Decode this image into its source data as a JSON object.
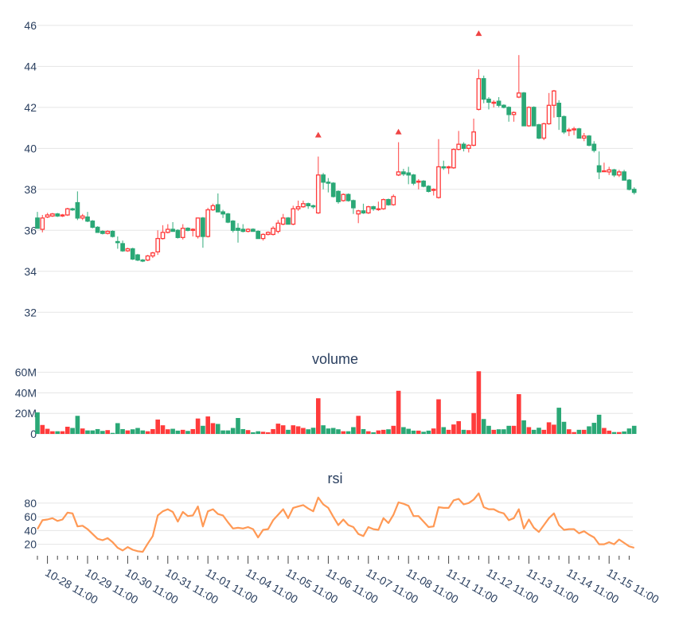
{
  "chart_data": [
    {
      "type": "candlestick",
      "title": "",
      "ylim": [
        31.0,
        46.5
      ],
      "yticks": [
        32,
        34,
        36,
        38,
        40,
        42,
        44,
        46
      ],
      "grid": true,
      "colors": {
        "increasing": "#ff3b3b",
        "decreasing": "#2aa876",
        "marker": "#ef4444"
      },
      "ohlc": [
        [
          36.6,
          36.9,
          36.1,
          36.1
        ],
        [
          36.05,
          36.75,
          35.9,
          36.6
        ],
        [
          36.65,
          36.85,
          36.6,
          36.75
        ],
        [
          36.7,
          36.85,
          36.65,
          36.8
        ],
        [
          36.8,
          36.85,
          36.65,
          36.7
        ],
        [
          36.7,
          36.8,
          36.65,
          36.75
        ],
        [
          36.75,
          37.1,
          36.7,
          37.05
        ],
        [
          37.05,
          37.1,
          36.95,
          37.0
        ],
        [
          37.35,
          37.9,
          36.5,
          36.6
        ],
        [
          36.6,
          36.8,
          36.5,
          36.7
        ],
        [
          36.65,
          36.9,
          36.4,
          36.45
        ],
        [
          36.45,
          36.5,
          36.1,
          36.15
        ],
        [
          36.15,
          36.2,
          35.9,
          35.9
        ],
        [
          35.95,
          36.0,
          35.8,
          35.85
        ],
        [
          35.85,
          36.0,
          35.8,
          35.95
        ],
        [
          35.95,
          36.0,
          35.65,
          35.7
        ],
        [
          35.45,
          35.7,
          35.1,
          35.4
        ],
        [
          35.35,
          35.5,
          34.95,
          35.0
        ],
        [
          35.0,
          35.15,
          34.95,
          35.1
        ],
        [
          35.1,
          35.15,
          34.55,
          34.6
        ],
        [
          34.8,
          34.85,
          34.5,
          34.55
        ],
        [
          34.55,
          34.6,
          34.45,
          34.5
        ],
        [
          34.55,
          34.8,
          34.5,
          34.75
        ],
        [
          34.75,
          34.95,
          34.65,
          34.9
        ],
        [
          34.95,
          36.0,
          34.8,
          35.6
        ],
        [
          35.6,
          36.25,
          35.55,
          35.9
        ],
        [
          35.9,
          36.3,
          35.85,
          36.05
        ],
        [
          36.05,
          36.4,
          35.95,
          35.95
        ],
        [
          36.0,
          36.05,
          35.6,
          35.65
        ],
        [
          35.65,
          36.3,
          35.55,
          36.1
        ],
        [
          36.1,
          36.15,
          35.95,
          36.0
        ],
        [
          36.0,
          36.1,
          35.7,
          36.05
        ],
        [
          35.7,
          36.6,
          35.6,
          36.6
        ],
        [
          36.6,
          36.65,
          35.15,
          35.7
        ],
        [
          35.7,
          37.1,
          35.65,
          37.0
        ],
        [
          37.0,
          37.3,
          36.95,
          37.2
        ],
        [
          37.25,
          37.8,
          36.9,
          36.9
        ],
        [
          36.9,
          37.0,
          36.6,
          36.8
        ],
        [
          36.8,
          36.85,
          36.35,
          36.4
        ],
        [
          36.45,
          36.5,
          35.9,
          36.0
        ],
        [
          36.1,
          36.35,
          35.4,
          36.0
        ],
        [
          36.05,
          36.3,
          35.9,
          35.95
        ],
        [
          35.95,
          36.1,
          35.9,
          36.05
        ],
        [
          36.05,
          36.1,
          35.95,
          35.95
        ],
        [
          35.95,
          36.0,
          35.6,
          35.6
        ],
        [
          35.6,
          35.85,
          35.5,
          35.8
        ],
        [
          35.8,
          35.95,
          35.75,
          35.9
        ],
        [
          35.8,
          36.2,
          35.75,
          36.1
        ],
        [
          35.95,
          36.5,
          35.85,
          36.35
        ],
        [
          36.3,
          36.8,
          36.25,
          36.6
        ],
        [
          36.6,
          36.65,
          36.3,
          36.3
        ],
        [
          36.3,
          37.2,
          36.25,
          37.05
        ],
        [
          37.05,
          37.45,
          36.95,
          37.15
        ],
        [
          37.15,
          37.45,
          37.1,
          37.3
        ],
        [
          37.3,
          37.35,
          37.05,
          37.2
        ],
        [
          37.2,
          37.25,
          37.05,
          37.15
        ],
        [
          36.85,
          39.6,
          36.8,
          38.7
        ],
        [
          38.7,
          38.8,
          38.0,
          38.35
        ],
        [
          38.35,
          38.55,
          37.85,
          38.3
        ],
        [
          38.3,
          38.35,
          37.6,
          37.65
        ],
        [
          37.9,
          37.95,
          37.3,
          37.4
        ],
        [
          37.45,
          37.8,
          37.4,
          37.75
        ],
        [
          37.75,
          37.8,
          37.4,
          37.45
        ],
        [
          37.45,
          37.5,
          36.8,
          37.1
        ],
        [
          36.8,
          37.0,
          36.35,
          36.95
        ],
        [
          36.95,
          37.3,
          36.8,
          36.85
        ],
        [
          36.85,
          37.2,
          36.8,
          37.15
        ],
        [
          37.15,
          37.2,
          36.95,
          37.05
        ],
        [
          37.05,
          37.4,
          36.95,
          37.05
        ],
        [
          37.05,
          37.55,
          37.0,
          37.5
        ],
        [
          37.5,
          37.55,
          37.2,
          37.25
        ],
        [
          37.25,
          37.75,
          37.2,
          37.65
        ],
        [
          38.7,
          40.3,
          38.65,
          38.85
        ],
        [
          38.85,
          39.0,
          38.65,
          38.75
        ],
        [
          38.8,
          39.1,
          38.25,
          38.7
        ],
        [
          38.7,
          38.75,
          38.2,
          38.3
        ],
        [
          38.35,
          38.5,
          38.0,
          38.4
        ],
        [
          38.4,
          38.45,
          38.1,
          38.15
        ],
        [
          38.15,
          38.2,
          37.85,
          37.9
        ],
        [
          37.95,
          38.05,
          37.7,
          38.0
        ],
        [
          37.6,
          40.45,
          37.55,
          39.1
        ],
        [
          39.1,
          39.4,
          38.95,
          39.05
        ],
        [
          39.05,
          39.15,
          38.75,
          39.1
        ],
        [
          39.05,
          40.0,
          39.0,
          39.95
        ],
        [
          39.95,
          40.85,
          39.9,
          40.2
        ],
        [
          40.2,
          40.3,
          39.85,
          40.0
        ],
        [
          40.0,
          40.2,
          39.8,
          40.15
        ],
        [
          40.15,
          41.45,
          40.1,
          40.8
        ],
        [
          41.9,
          43.85,
          41.85,
          43.4
        ],
        [
          43.4,
          43.55,
          42.2,
          42.4
        ],
        [
          42.4,
          42.5,
          41.9,
          42.25
        ],
        [
          42.2,
          42.35,
          42.0,
          42.25
        ],
        [
          42.3,
          42.5,
          42.0,
          42.1
        ],
        [
          42.1,
          42.15,
          41.95,
          42.0
        ],
        [
          42.0,
          42.05,
          41.3,
          41.65
        ],
        [
          41.65,
          41.8,
          41.3,
          41.75
        ],
        [
          42.5,
          44.55,
          42.45,
          42.7
        ],
        [
          42.7,
          42.75,
          41.1,
          41.1
        ],
        [
          41.1,
          42.05,
          41.05,
          42.0
        ],
        [
          42.0,
          42.05,
          41.1,
          41.1
        ],
        [
          41.15,
          41.2,
          40.45,
          40.5
        ],
        [
          40.5,
          41.25,
          40.4,
          41.2
        ],
        [
          41.2,
          42.7,
          41.15,
          42.1
        ],
        [
          42.1,
          42.85,
          41.5,
          42.8
        ],
        [
          42.2,
          42.35,
          40.9,
          41.55
        ],
        [
          41.55,
          41.6,
          40.7,
          40.8
        ],
        [
          40.85,
          41.0,
          40.6,
          40.9
        ],
        [
          40.9,
          41.05,
          40.65,
          40.95
        ],
        [
          40.95,
          41.0,
          40.5,
          40.5
        ],
        [
          40.5,
          40.75,
          40.35,
          40.6
        ],
        [
          40.6,
          40.65,
          40.1,
          40.15
        ],
        [
          40.2,
          40.35,
          39.8,
          39.9
        ],
        [
          39.15,
          39.85,
          38.5,
          38.85
        ],
        [
          38.9,
          39.3,
          38.85,
          38.9
        ],
        [
          38.85,
          39.1,
          38.7,
          38.95
        ],
        [
          38.95,
          39.0,
          38.6,
          38.7
        ],
        [
          38.7,
          38.95,
          38.6,
          38.85
        ],
        [
          38.85,
          38.95,
          38.45,
          38.45
        ],
        [
          38.45,
          38.5,
          37.95,
          38.0
        ],
        [
          38.0,
          38.1,
          37.75,
          37.85
        ]
      ],
      "markers": [
        {
          "index": 56,
          "value": 40.65,
          "symbol": "triangle-up"
        },
        {
          "index": 72,
          "value": 40.8,
          "symbol": "triangle-up"
        },
        {
          "index": 88,
          "value": 45.6,
          "symbol": "triangle-up"
        }
      ]
    },
    {
      "type": "bar",
      "title": "volume",
      "ylim": [
        0,
        62000000
      ],
      "yticks": [
        0,
        20000000,
        40000000,
        60000000
      ],
      "ytick_labels": [
        "0",
        "20M",
        "40M",
        "60M"
      ],
      "grid": true,
      "values": [
        21000000,
        8700000,
        5000000,
        2600000,
        2600000,
        2600000,
        7000000,
        5800000,
        17600000,
        5300000,
        3400000,
        3400000,
        4700000,
        2900000,
        3700000,
        1000000,
        10500000,
        4700000,
        3400000,
        4500000,
        5800000,
        3400000,
        2600000,
        4700000,
        14000000,
        8400000,
        4500000,
        5000000,
        3200000,
        4000000,
        2900000,
        4700000,
        15000000,
        7900000,
        17000000,
        10500000,
        9700000,
        3400000,
        3400000,
        5800000,
        15500000,
        4700000,
        3700000,
        1600000,
        2600000,
        2100000,
        1600000,
        4700000,
        10000000,
        8400000,
        4000000,
        8400000,
        7400000,
        5800000,
        4500000,
        6000000,
        34700000,
        8400000,
        5300000,
        5800000,
        4500000,
        2600000,
        2600000,
        6600000,
        17600000,
        4700000,
        2600000,
        1600000,
        3400000,
        4000000,
        4500000,
        7900000,
        42000000,
        6600000,
        5000000,
        3200000,
        3200000,
        2100000,
        3200000,
        5300000,
        33700000,
        6600000,
        4000000,
        9200000,
        12400000,
        4000000,
        3700000,
        20300000,
        61000000,
        14500000,
        7900000,
        4000000,
        4500000,
        4500000,
        7900000,
        7900000,
        38700000,
        13200000,
        6600000,
        4000000,
        6000000,
        4000000,
        11300000,
        9000000,
        25500000,
        11800000,
        4500000,
        1800000,
        4000000,
        4000000,
        7400000,
        10800000,
        18700000,
        5800000,
        3200000,
        1800000,
        1800000,
        2400000,
        5300000,
        7900000
      ]
    },
    {
      "type": "line",
      "title": "rsi",
      "ylim": [
        8,
        96
      ],
      "yticks": [
        20,
        40,
        60,
        80
      ],
      "grid": true,
      "color": "#ff9955",
      "values": [
        42,
        55,
        56,
        58,
        54,
        56,
        66,
        65,
        46,
        47,
        42,
        35,
        28,
        26,
        29,
        23,
        15,
        11,
        16,
        12,
        10,
        9,
        21,
        32,
        62,
        68,
        71,
        67,
        53,
        67,
        61,
        62,
        75,
        46,
        68,
        71,
        64,
        62,
        52,
        43,
        44,
        43,
        45,
        42,
        30,
        41,
        42,
        55,
        63,
        71,
        58,
        73,
        75,
        77,
        72,
        68,
        88,
        78,
        73,
        60,
        48,
        56,
        48,
        45,
        35,
        32,
        45,
        42,
        41,
        58,
        51,
        63,
        81,
        79,
        76,
        61,
        61,
        53,
        45,
        46,
        74,
        73,
        73,
        84,
        86,
        78,
        80,
        85,
        94,
        74,
        71,
        71,
        67,
        65,
        55,
        58,
        71,
        43,
        56,
        44,
        38,
        48,
        58,
        65,
        48,
        41,
        42,
        42,
        36,
        39,
        34,
        30,
        20,
        20,
        23,
        20,
        27,
        22,
        17,
        15
      ],
      "xtick_labels": [
        "10-28 11:00",
        "10-29 11:00",
        "10-30 11:00",
        "10-31 11:00",
        "11-01 11:00",
        "11-04 11:00",
        "11-05 11:00",
        "11-06 11:00",
        "11-07 11:00",
        "11-08 11:00",
        "11-11 11:00",
        "11-12 11:00",
        "11-13 11:00",
        "11-14 11:00",
        "11-15 11:00"
      ]
    }
  ]
}
